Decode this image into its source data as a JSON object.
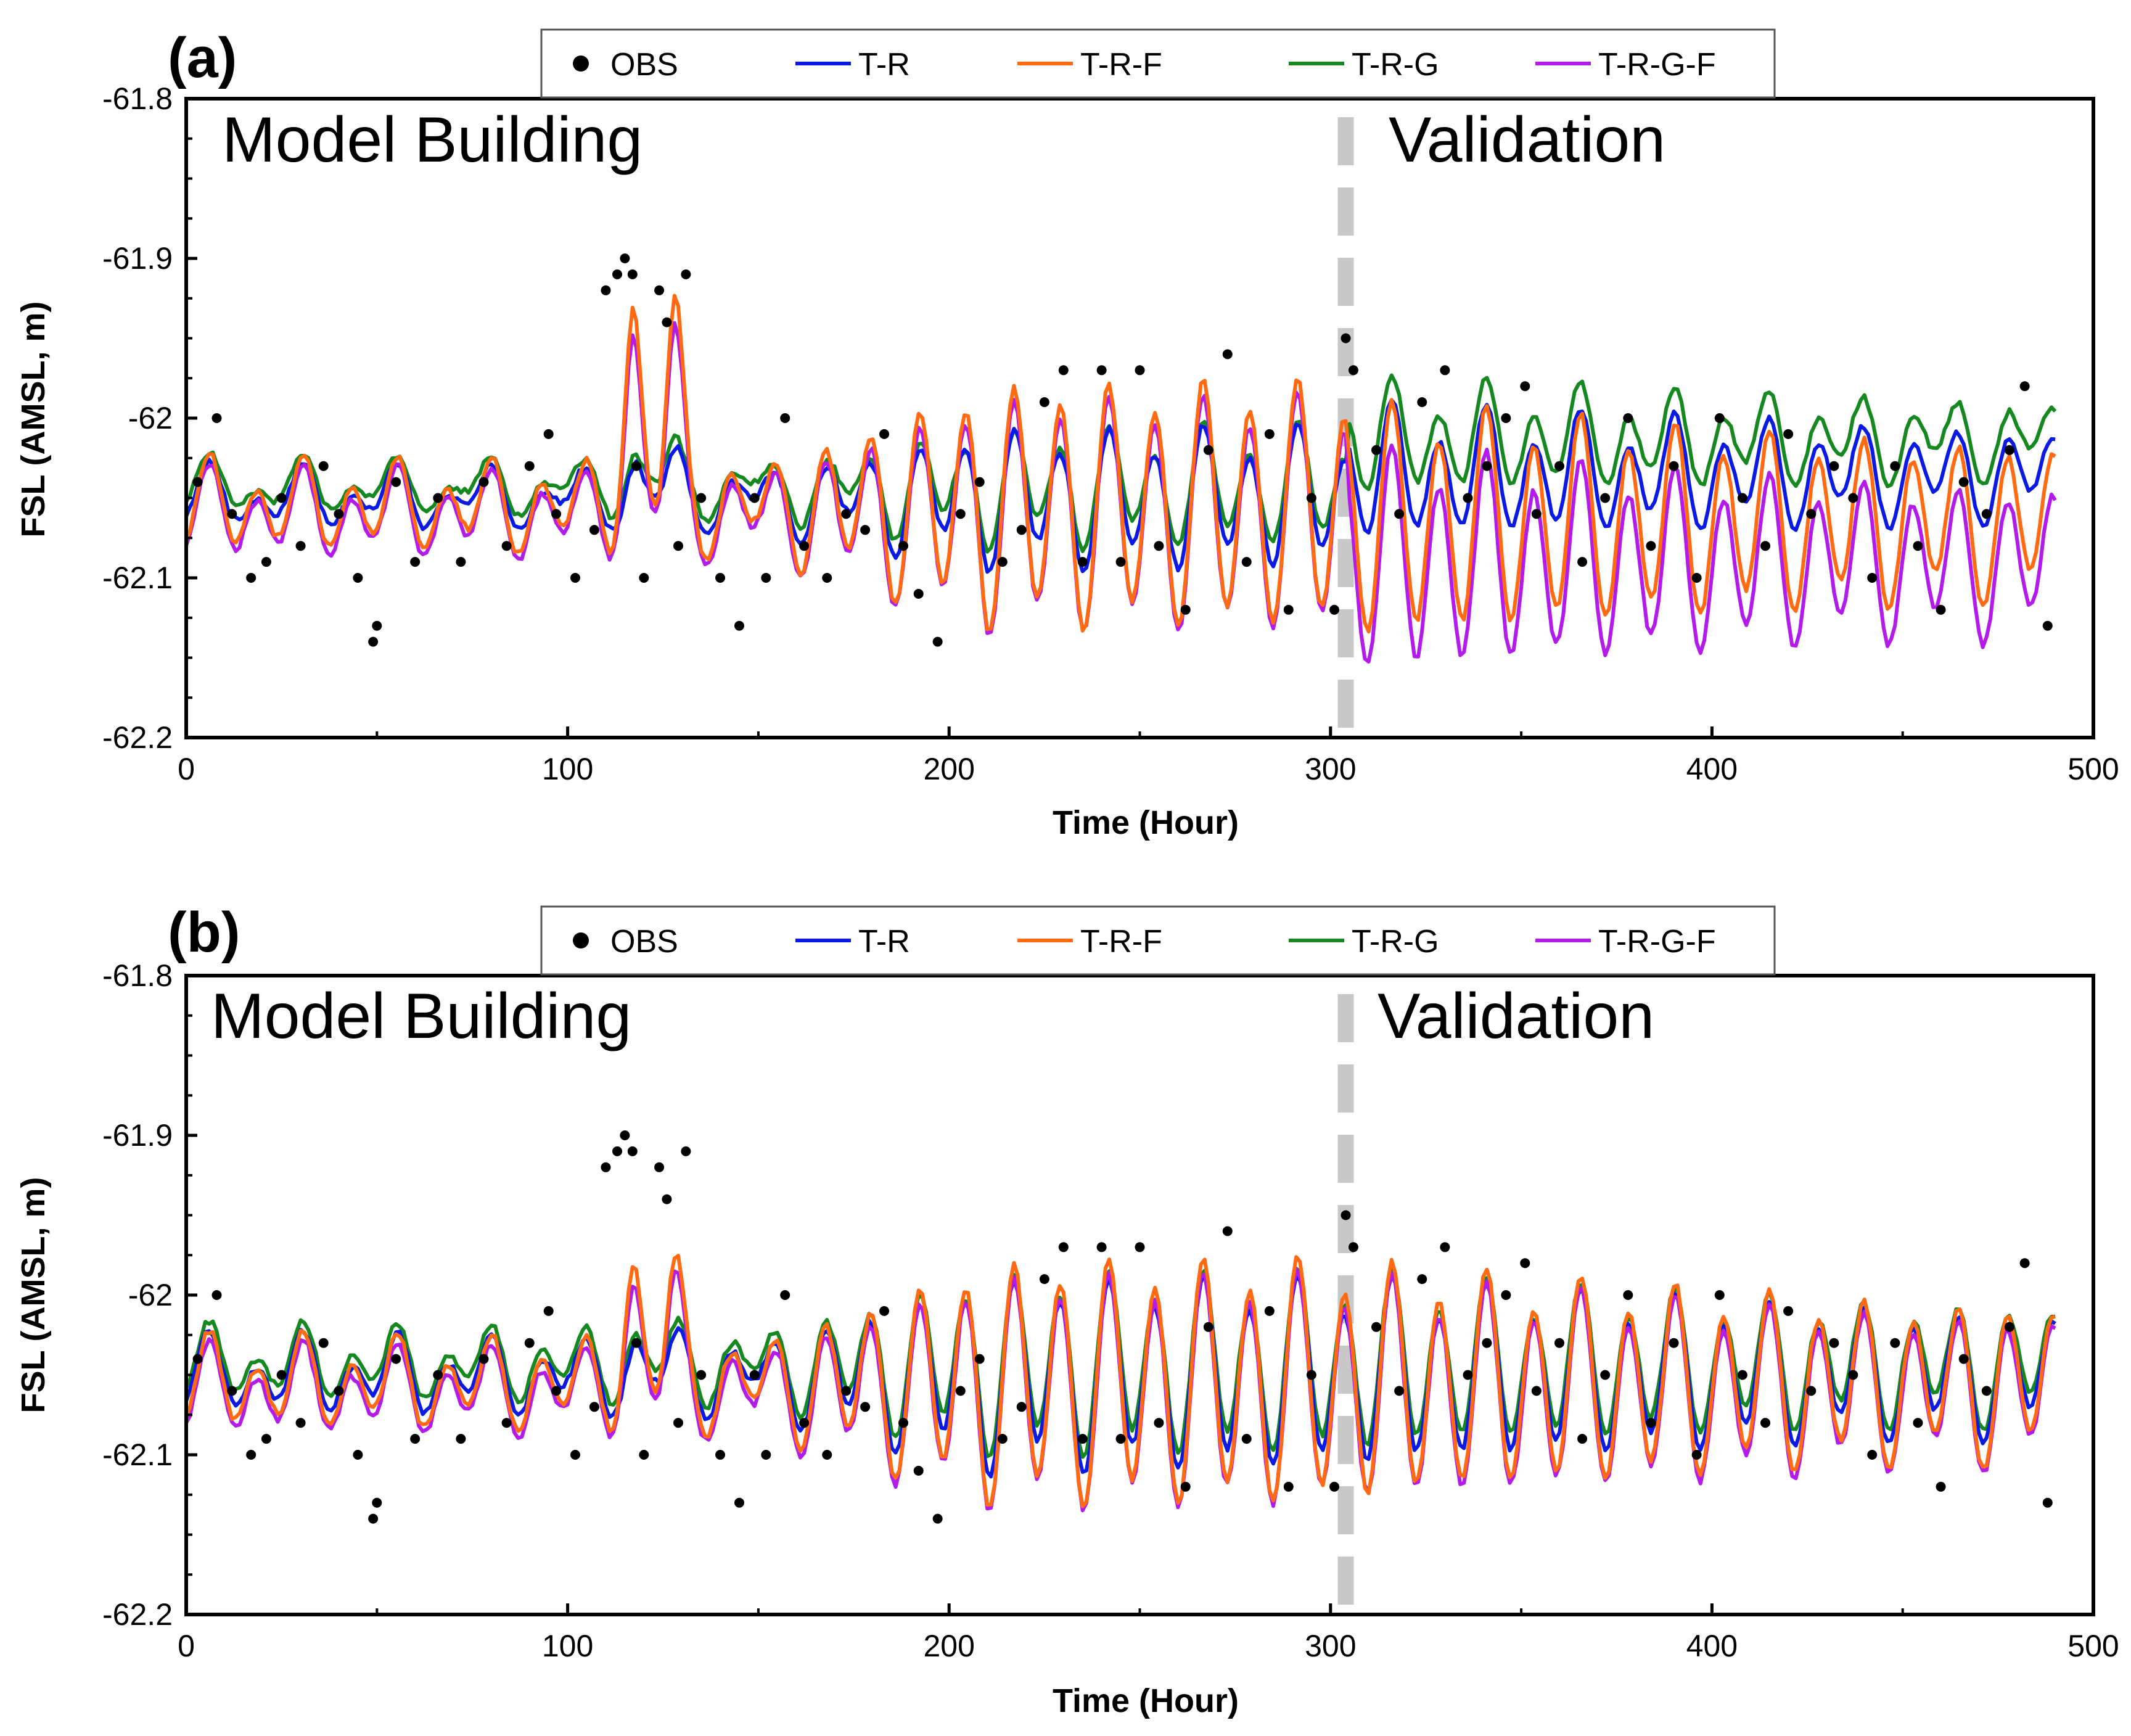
{
  "chart_data": [
    {
      "type": "line",
      "panel_label": "(a)",
      "region_labels": {
        "left": "Model Building",
        "right": "Validation"
      },
      "divider_x": 304,
      "xlabel": "Time (Hour)",
      "ylabel": "FSL (AMSL, m)",
      "xlim": [
        0,
        500
      ],
      "ylim": [
        -62.2,
        -61.8
      ],
      "x_ticks": [
        0,
        100,
        200,
        300,
        400,
        500
      ],
      "x_tick_labels": [
        "0",
        "100",
        "200",
        "300",
        "400",
        "500"
      ],
      "y_ticks": [
        -61.8,
        -61.9,
        -62.0,
        -62.1,
        -62.2
      ],
      "y_tick_labels": [
        "-61.8",
        "-61.9",
        "-62",
        "-62.1",
        "-62.2"
      ],
      "legend": [
        "OBS",
        "T-R",
        "T-R-F",
        "T-R-G",
        "T-R-G-F"
      ],
      "series": [
        {
          "name": "OBS",
          "kind": "scatter",
          "color": "#000000",
          "x": [
            3,
            8,
            12,
            17,
            21,
            25,
            30,
            36,
            40,
            45,
            49,
            50,
            55,
            60,
            66,
            72,
            78,
            84,
            90,
            95,
            97,
            102,
            107,
            110,
            113,
            115,
            117,
            118,
            120,
            124,
            126,
            129,
            131,
            135,
            140,
            145,
            149,
            152,
            157,
            162,
            168,
            173,
            178,
            183,
            188,
            192,
            197,
            203,
            208,
            214,
            219,
            225,
            230,
            235,
            240,
            245,
            250,
            255,
            262,
            268,
            273,
            278,
            284,
            289,
            295,
            301,
            304,
            306,
            312,
            318,
            324,
            330,
            336,
            341,
            346,
            351,
            354,
            360,
            366,
            372,
            378,
            384,
            390,
            396,
            402,
            408,
            414,
            420,
            426,
            432,
            437,
            442,
            448,
            454,
            460,
            466,
            472,
            478,
            482,
            488
          ],
          "y": [
            -62.04,
            -62.0,
            -62.06,
            -62.1,
            -62.09,
            -62.05,
            -62.08,
            -62.03,
            -62.06,
            -62.1,
            -62.14,
            -62.13,
            -62.04,
            -62.09,
            -62.05,
            -62.09,
            -62.04,
            -62.08,
            -62.03,
            -62.01,
            -62.06,
            -62.1,
            -62.07,
            -61.92,
            -61.91,
            -61.9,
            -61.91,
            -62.03,
            -62.1,
            -61.92,
            -61.94,
            -62.08,
            -61.91,
            -62.05,
            -62.1,
            -62.13,
            -62.05,
            -62.1,
            -62.0,
            -62.08,
            -62.1,
            -62.06,
            -62.07,
            -62.01,
            -62.08,
            -62.11,
            -62.14,
            -62.06,
            -62.04,
            -62.09,
            -62.07,
            -61.99,
            -61.97,
            -62.09,
            -61.97,
            -62.09,
            -61.97,
            -62.08,
            -62.12,
            -62.02,
            -61.96,
            -62.09,
            -62.01,
            -62.12,
            -62.05,
            -62.12,
            -61.95,
            -61.97,
            -62.02,
            -62.06,
            -61.99,
            -61.97,
            -62.05,
            -62.03,
            -62.0,
            -61.98,
            -62.06,
            -62.03,
            -62.09,
            -62.05,
            -62.0,
            -62.08,
            -62.03,
            -62.1,
            -62.0,
            -62.05,
            -62.08,
            -62.01,
            -62.06,
            -62.03,
            -62.05,
            -62.1,
            -62.03,
            -62.08,
            -62.12,
            -62.04,
            -62.06,
            -62.02,
            -61.98,
            -62.13
          ]
        },
        {
          "name": "T-R",
          "kind": "line",
          "color": "#0b1ae3"
        },
        {
          "name": "T-R-F",
          "kind": "line",
          "color": "#ff6a13"
        },
        {
          "name": "T-R-G",
          "kind": "line",
          "color": "#15881f"
        },
        {
          "name": "T-R-G-F",
          "kind": "line",
          "color": "#b21bea"
        }
      ]
    },
    {
      "type": "line",
      "panel_label": "(b)",
      "region_labels": {
        "left": "Model Building",
        "right": "Validation"
      },
      "divider_x": 304,
      "xlabel": "Time (Hour)",
      "ylabel": "FSL (AMSL, m)",
      "xlim": [
        0,
        500
      ],
      "ylim": [
        -62.2,
        -61.8
      ],
      "x_ticks": [
        0,
        100,
        200,
        300,
        400,
        500
      ],
      "x_tick_labels": [
        "0",
        "100",
        "200",
        "300",
        "400",
        "500"
      ],
      "y_ticks": [
        -61.8,
        -61.9,
        -62.0,
        -62.1,
        -62.2
      ],
      "y_tick_labels": [
        "-61.8",
        "-61.9",
        "-62",
        "-62.1",
        "-62.2"
      ],
      "legend": [
        "OBS",
        "T-R",
        "T-R-F",
        "T-R-G",
        "T-R-G-F"
      ],
      "series": [
        {
          "name": "OBS",
          "kind": "scatter",
          "color": "#000000",
          "x": [
            3,
            8,
            12,
            17,
            21,
            25,
            30,
            36,
            40,
            45,
            49,
            50,
            55,
            60,
            66,
            72,
            78,
            84,
            90,
            95,
            97,
            102,
            107,
            110,
            113,
            115,
            117,
            118,
            120,
            124,
            126,
            129,
            131,
            135,
            140,
            145,
            149,
            152,
            157,
            162,
            168,
            173,
            178,
            183,
            188,
            192,
            197,
            203,
            208,
            214,
            219,
            225,
            230,
            235,
            240,
            245,
            250,
            255,
            262,
            268,
            273,
            278,
            284,
            289,
            295,
            301,
            304,
            306,
            312,
            318,
            324,
            330,
            336,
            341,
            346,
            351,
            354,
            360,
            366,
            372,
            378,
            384,
            390,
            396,
            402,
            408,
            414,
            420,
            426,
            432,
            437,
            442,
            448,
            454,
            460,
            466,
            472,
            478,
            482,
            488
          ],
          "y": [
            -62.04,
            -62.0,
            -62.06,
            -62.1,
            -62.09,
            -62.05,
            -62.08,
            -62.03,
            -62.06,
            -62.1,
            -62.14,
            -62.13,
            -62.04,
            -62.09,
            -62.05,
            -62.09,
            -62.04,
            -62.08,
            -62.03,
            -62.01,
            -62.06,
            -62.1,
            -62.07,
            -61.92,
            -61.91,
            -61.9,
            -61.91,
            -62.03,
            -62.1,
            -61.92,
            -61.94,
            -62.08,
            -61.91,
            -62.05,
            -62.1,
            -62.13,
            -62.05,
            -62.1,
            -62.0,
            -62.08,
            -62.1,
            -62.06,
            -62.07,
            -62.01,
            -62.08,
            -62.11,
            -62.14,
            -62.06,
            -62.04,
            -62.09,
            -62.07,
            -61.99,
            -61.97,
            -62.09,
            -61.97,
            -62.09,
            -61.97,
            -62.08,
            -62.12,
            -62.02,
            -61.96,
            -62.09,
            -62.01,
            -62.12,
            -62.05,
            -62.12,
            -61.95,
            -61.97,
            -62.02,
            -62.06,
            -61.99,
            -61.97,
            -62.05,
            -62.03,
            -62.0,
            -61.98,
            -62.06,
            -62.03,
            -62.09,
            -62.05,
            -62.0,
            -62.08,
            -62.03,
            -62.1,
            -62.0,
            -62.05,
            -62.08,
            -62.01,
            -62.06,
            -62.03,
            -62.05,
            -62.1,
            -62.03,
            -62.08,
            -62.12,
            -62.04,
            -62.06,
            -62.02,
            -61.98,
            -62.13
          ]
        },
        {
          "name": "T-R",
          "kind": "line",
          "color": "#0b1ae3"
        },
        {
          "name": "T-R-F",
          "kind": "line",
          "color": "#ff6a13"
        },
        {
          "name": "T-R-G",
          "kind": "line",
          "color": "#15881f"
        },
        {
          "name": "T-R-G-F",
          "kind": "line",
          "color": "#b21bea"
        }
      ]
    }
  ]
}
